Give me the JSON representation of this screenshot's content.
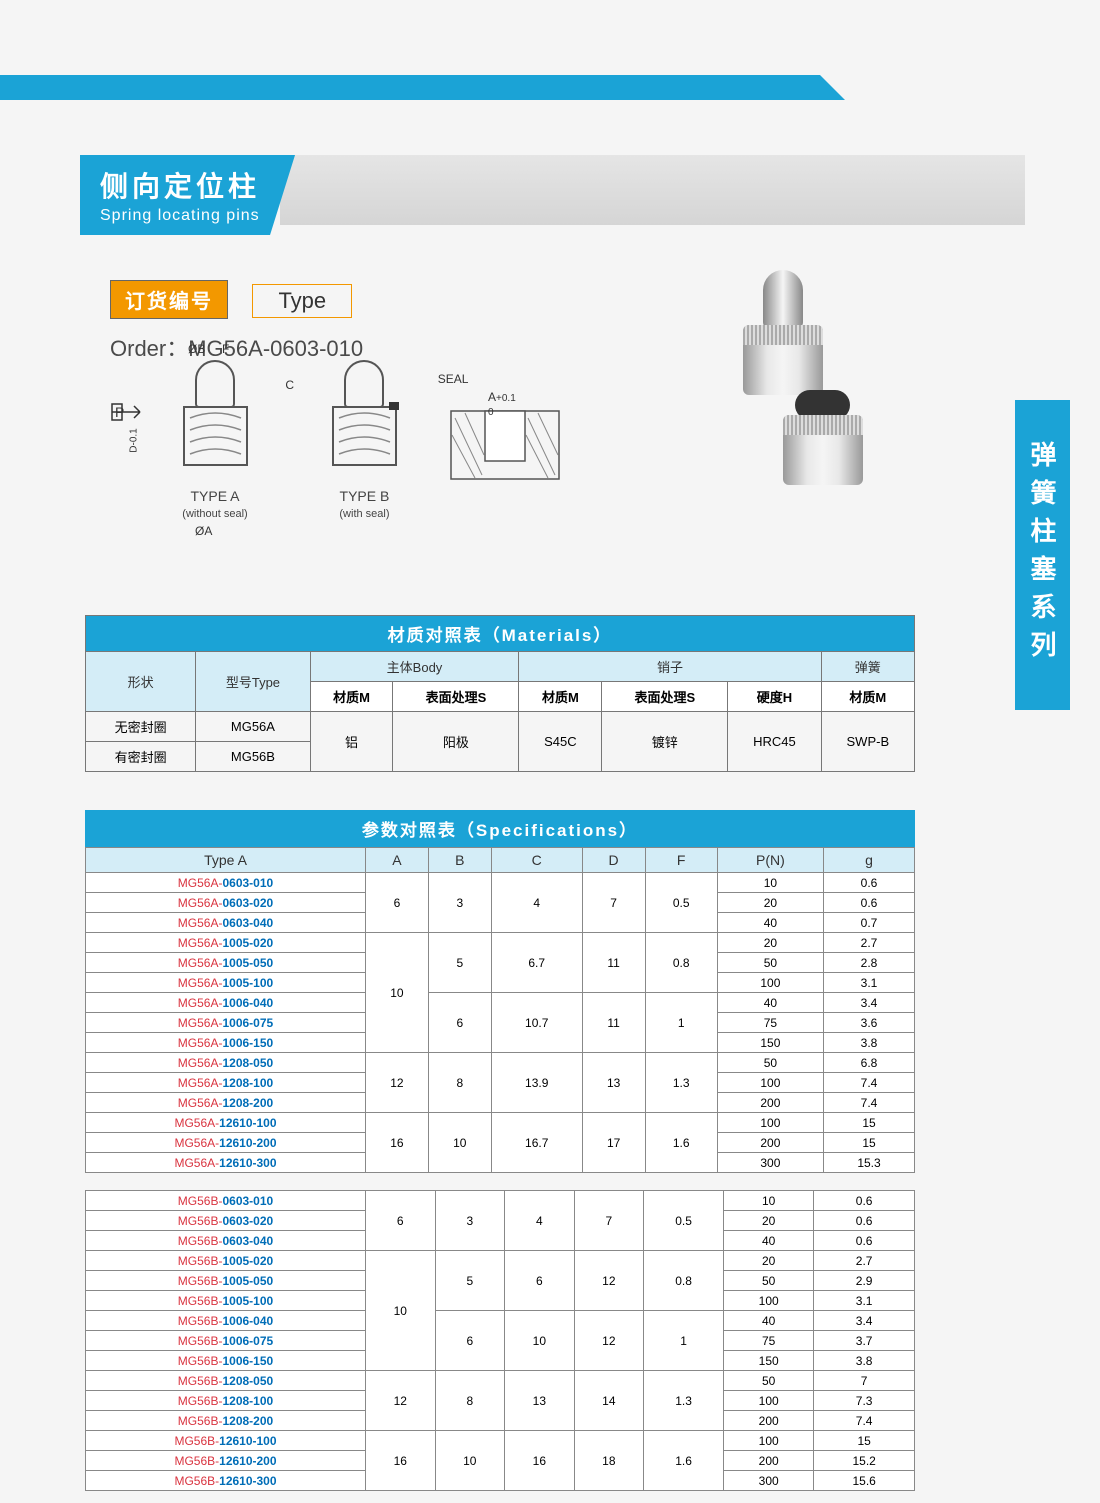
{
  "title_cn": "侧向定位柱",
  "title_en": "Spring locating pins",
  "side_tab": "弹簧柱塞系列",
  "order": {
    "badge": "订货编号",
    "type_label": "Type",
    "line": "Order：MG56A-0603-010"
  },
  "diagram": {
    "seal_label": "SEAL",
    "dim_b": "ØB",
    "dim_f": "F",
    "dim_c": "C",
    "dim_a": "ØA",
    "dim_d": "D-0.1",
    "dim_ao": "A",
    "dim_ao_tol": "+0.1\n0",
    "arrow_p": "P",
    "typeA": "TYPE A",
    "typeA_sub": "(without seal)",
    "typeB": "TYPE B",
    "typeB_sub": "(with seal)"
  },
  "materials": {
    "title": "材质对照表（Materials）",
    "headers": {
      "shape": "形状",
      "type": "型号Type",
      "body": "主体Body",
      "pin": "销子",
      "spring": "弹簧",
      "mat": "材质M",
      "surf": "表面处理S",
      "hard": "硬度H"
    },
    "row1_shape": "无密封圈",
    "row1_type": "MG56A",
    "row2_shape": "有密封圈",
    "row2_type": "MG56B",
    "body_mat": "铝",
    "body_surf": "阳极",
    "pin_mat": "S45C",
    "pin_surf": "镀锌",
    "pin_hard": "HRC45",
    "spring_mat": "SWP-B"
  },
  "specs": {
    "title": "参数对照表（Specifications）",
    "cols": [
      "A",
      "B",
      "C",
      "D",
      "F",
      "P(N)",
      "g"
    ],
    "type_a_label": "Type A",
    "tableA": {
      "prefix": "MG56A-",
      "groups": [
        {
          "A": "6",
          "B": "3",
          "C": "4",
          "D": "7",
          "F": "0.5",
          "rows": [
            {
              "code": "0603-010",
              "P": "10",
              "g": "0.6"
            },
            {
              "code": "0603-020",
              "P": "20",
              "g": "0.6"
            },
            {
              "code": "0603-040",
              "P": "40",
              "g": "0.7"
            }
          ]
        },
        {
          "A": "10",
          "sub": [
            {
              "B": "5",
              "C": "6.7",
              "D": "11",
              "F": "0.8",
              "rows": [
                {
                  "code": "1005-020",
                  "P": "20",
                  "g": "2.7"
                },
                {
                  "code": "1005-050",
                  "P": "50",
                  "g": "2.8"
                },
                {
                  "code": "1005-100",
                  "P": "100",
                  "g": "3.1"
                }
              ]
            },
            {
              "B": "6",
              "C": "10.7",
              "D": "11",
              "F": "1",
              "rows": [
                {
                  "code": "1006-040",
                  "P": "40",
                  "g": "3.4"
                },
                {
                  "code": "1006-075",
                  "P": "75",
                  "g": "3.6"
                },
                {
                  "code": "1006-150",
                  "P": "150",
                  "g": "3.8"
                }
              ]
            }
          ]
        },
        {
          "A": "12",
          "B": "8",
          "C": "13.9",
          "D": "13",
          "F": "1.3",
          "rows": [
            {
              "code": "1208-050",
              "P": "50",
              "g": "6.8"
            },
            {
              "code": "1208-100",
              "P": "100",
              "g": "7.4"
            },
            {
              "code": "1208-200",
              "P": "200",
              "g": "7.4"
            }
          ]
        },
        {
          "A": "16",
          "B": "10",
          "C": "16.7",
          "D": "17",
          "F": "1.6",
          "rows": [
            {
              "code": "12610-100",
              "P": "100",
              "g": "15"
            },
            {
              "code": "12610-200",
              "P": "200",
              "g": "15"
            },
            {
              "code": "12610-300",
              "P": "300",
              "g": "15.3"
            }
          ]
        }
      ]
    },
    "tableB": {
      "prefix": "MG56B-",
      "groups": [
        {
          "A": "6",
          "B": "3",
          "C": "4",
          "D": "7",
          "F": "0.5",
          "rows": [
            {
              "code": "0603-010",
              "P": "10",
              "g": "0.6"
            },
            {
              "code": "0603-020",
              "P": "20",
              "g": "0.6"
            },
            {
              "code": "0603-040",
              "P": "40",
              "g": "0.6"
            }
          ]
        },
        {
          "A": "10",
          "sub": [
            {
              "B": "5",
              "C": "6",
              "D": "12",
              "F": "0.8",
              "rows": [
                {
                  "code": "1005-020",
                  "P": "20",
                  "g": "2.7"
                },
                {
                  "code": "1005-050",
                  "P": "50",
                  "g": "2.9"
                },
                {
                  "code": "1005-100",
                  "P": "100",
                  "g": "3.1"
                }
              ]
            },
            {
              "B": "6",
              "C": "10",
              "D": "12",
              "F": "1",
              "rows": [
                {
                  "code": "1006-040",
                  "P": "40",
                  "g": "3.4"
                },
                {
                  "code": "1006-075",
                  "P": "75",
                  "g": "3.7"
                },
                {
                  "code": "1006-150",
                  "P": "150",
                  "g": "3.8"
                }
              ]
            }
          ]
        },
        {
          "A": "12",
          "B": "8",
          "C": "13",
          "D": "14",
          "F": "1.3",
          "rows": [
            {
              "code": "1208-050",
              "P": "50",
              "g": "7"
            },
            {
              "code": "1208-100",
              "P": "100",
              "g": "7.3"
            },
            {
              "code": "1208-200",
              "P": "200",
              "g": "7.4"
            }
          ]
        },
        {
          "A": "16",
          "B": "10",
          "C": "16",
          "D": "18",
          "F": "1.6",
          "rows": [
            {
              "code": "12610-100",
              "P": "100",
              "g": "15"
            },
            {
              "code": "12610-200",
              "P": "200",
              "g": "15.2"
            },
            {
              "code": "12610-300",
              "P": "300",
              "g": "15.6"
            }
          ]
        }
      ]
    }
  }
}
